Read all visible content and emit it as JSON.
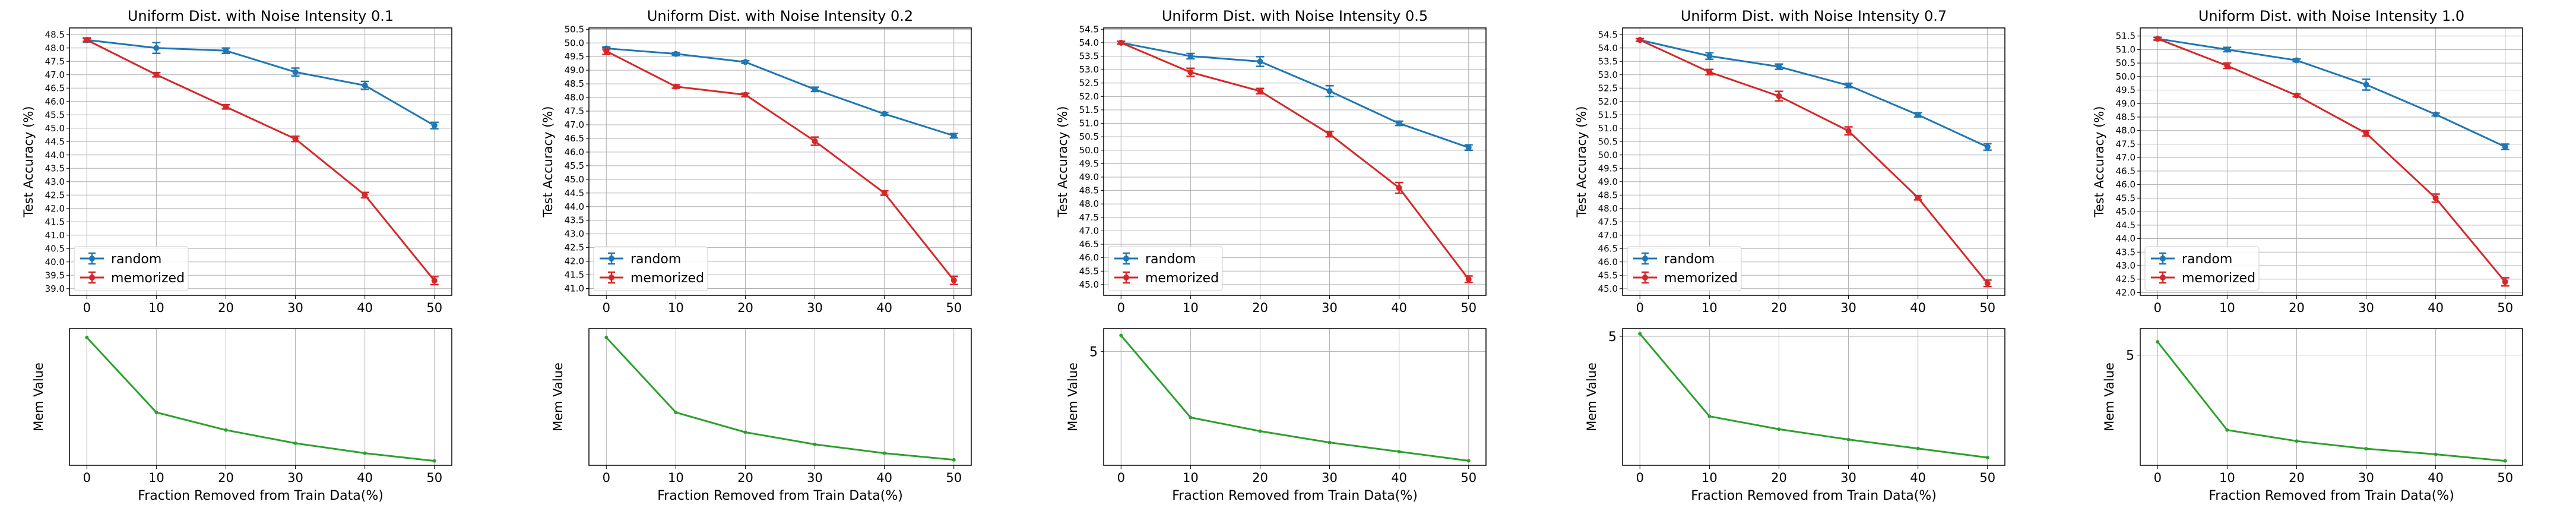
{
  "chart_data": [
    {
      "type": "line",
      "title": "Uniform Dist. with Noise Intensity 0.1",
      "xlabel": "",
      "ylabel": "Test Accuracy (%)",
      "x": [
        0,
        10,
        20,
        30,
        40,
        50
      ],
      "xlim": [
        -2.5,
        52.5
      ],
      "ylim": [
        38.75,
        48.75
      ],
      "ytick_start": 39.0,
      "ytick_step": 0.5,
      "grid": true,
      "legend": "lower-left",
      "series": [
        {
          "name": "random",
          "color": "#1f77b4",
          "values": [
            48.3,
            48.0,
            47.9,
            47.1,
            46.6,
            45.1
          ],
          "errors": [
            0.08,
            0.2,
            0.1,
            0.15,
            0.15,
            0.12
          ]
        },
        {
          "name": "memorized",
          "color": "#d62728",
          "values": [
            48.3,
            47.0,
            45.8,
            44.6,
            42.5,
            39.3
          ],
          "errors": [
            0.05,
            0.08,
            0.08,
            0.1,
            0.1,
            0.15
          ]
        }
      ],
      "mem": {
        "ylabel": "Mem Value",
        "xlabel": "Fraction Removed from Train Data(%)",
        "yticks": [],
        "color": "#2ca02c",
        "ylim": [
          0,
          6.2
        ],
        "values": [
          5.8,
          2.4,
          1.6,
          1.0,
          0.55,
          0.2
        ]
      }
    },
    {
      "type": "line",
      "title": "Uniform Dist. with Noise Intensity 0.2",
      "xlabel": "",
      "ylabel": "Test Accuracy (%)",
      "x": [
        0,
        10,
        20,
        30,
        40,
        50
      ],
      "xlim": [
        -2.5,
        52.5
      ],
      "ylim": [
        40.75,
        50.55
      ],
      "ytick_start": 41.0,
      "ytick_step": 0.5,
      "grid": true,
      "legend": "lower-left",
      "series": [
        {
          "name": "random",
          "color": "#1f77b4",
          "values": [
            49.8,
            49.6,
            49.3,
            48.3,
            47.4,
            46.6
          ],
          "errors": [
            0.05,
            0.05,
            0.05,
            0.08,
            0.05,
            0.08
          ]
        },
        {
          "name": "memorized",
          "color": "#d62728",
          "values": [
            49.7,
            48.4,
            48.1,
            46.4,
            44.5,
            41.3
          ],
          "errors": [
            0.12,
            0.06,
            0.06,
            0.15,
            0.08,
            0.15
          ]
        }
      ],
      "mem": {
        "ylabel": "Mem Value",
        "xlabel": "Fraction Removed from Train Data(%)",
        "yticks": [],
        "color": "#2ca02c",
        "ylim": [
          0,
          6.2
        ],
        "values": [
          5.8,
          2.4,
          1.5,
          0.95,
          0.55,
          0.25
        ]
      }
    },
    {
      "type": "line",
      "title": "Uniform Dist. with Noise Intensity 0.5",
      "xlabel": "",
      "ylabel": "Test Accuracy (%)",
      "x": [
        0,
        10,
        20,
        30,
        40,
        50
      ],
      "xlim": [
        -2.5,
        52.5
      ],
      "ylim": [
        44.6,
        54.55
      ],
      "ytick_start": 45.0,
      "ytick_step": 0.5,
      "grid": true,
      "legend": "lower-left",
      "series": [
        {
          "name": "random",
          "color": "#1f77b4",
          "values": [
            54.0,
            53.5,
            53.3,
            52.2,
            51.0,
            50.1
          ],
          "errors": [
            0.05,
            0.1,
            0.18,
            0.2,
            0.08,
            0.1
          ]
        },
        {
          "name": "memorized",
          "color": "#d62728",
          "values": [
            54.0,
            52.9,
            52.2,
            50.6,
            48.6,
            45.2
          ],
          "errors": [
            0.05,
            0.15,
            0.1,
            0.1,
            0.2,
            0.12
          ]
        }
      ],
      "mem": {
        "ylabel": "Mem Value",
        "xlabel": "Fraction Removed from Train Data(%)",
        "yticks": [
          5
        ],
        "color": "#2ca02c",
        "ylim": [
          0,
          6.0
        ],
        "values": [
          5.7,
          2.1,
          1.5,
          1.0,
          0.6,
          0.2
        ]
      }
    },
    {
      "type": "line",
      "title": "Uniform Dist. with Noise Intensity 0.7",
      "xlabel": "",
      "ylabel": "Test Accuracy (%)",
      "x": [
        0,
        10,
        20,
        30,
        40,
        50
      ],
      "xlim": [
        -2.5,
        52.5
      ],
      "ylim": [
        44.75,
        54.75
      ],
      "ytick_start": 45.0,
      "ytick_step": 0.5,
      "grid": true,
      "legend": "lower-left",
      "series": [
        {
          "name": "random",
          "color": "#1f77b4",
          "values": [
            54.3,
            53.7,
            53.3,
            52.6,
            51.5,
            50.3
          ],
          "errors": [
            0.05,
            0.12,
            0.1,
            0.08,
            0.08,
            0.12
          ]
        },
        {
          "name": "memorized",
          "color": "#d62728",
          "values": [
            54.3,
            53.1,
            52.2,
            50.9,
            48.4,
            45.2
          ],
          "errors": [
            0.05,
            0.1,
            0.18,
            0.15,
            0.08,
            0.12
          ]
        }
      ],
      "mem": {
        "ylabel": "Mem Value",
        "xlabel": "Fraction Removed from Train Data(%)",
        "yticks": [
          5
        ],
        "color": "#2ca02c",
        "ylim": [
          0,
          5.3
        ],
        "values": [
          5.1,
          1.9,
          1.4,
          1.0,
          0.65,
          0.3
        ]
      }
    },
    {
      "type": "line",
      "title": "Uniform Dist. with Noise Intensity 1.0",
      "xlabel": "",
      "ylabel": "Test Accuracy (%)",
      "x": [
        0,
        10,
        20,
        30,
        40,
        50
      ],
      "xlim": [
        -2.5,
        52.5
      ],
      "ylim": [
        41.9,
        51.8
      ],
      "ytick_start": 42.0,
      "ytick_step": 0.5,
      "grid": true,
      "legend": "lower-left",
      "series": [
        {
          "name": "random",
          "color": "#1f77b4",
          "values": [
            51.4,
            51.0,
            50.6,
            49.7,
            48.6,
            47.4
          ],
          "errors": [
            0.05,
            0.08,
            0.05,
            0.2,
            0.05,
            0.1
          ]
        },
        {
          "name": "memorized",
          "color": "#d62728",
          "values": [
            51.4,
            50.4,
            49.3,
            47.9,
            45.5,
            42.4
          ],
          "errors": [
            0.05,
            0.1,
            0.05,
            0.1,
            0.15,
            0.15
          ]
        }
      ],
      "mem": {
        "ylabel": "Mem Value",
        "xlabel": "Fraction Removed from Train Data(%)",
        "yticks": [
          5
        ],
        "color": "#2ca02c",
        "ylim": [
          0,
          6.2
        ],
        "values": [
          5.6,
          1.6,
          1.1,
          0.75,
          0.5,
          0.2
        ]
      }
    }
  ]
}
